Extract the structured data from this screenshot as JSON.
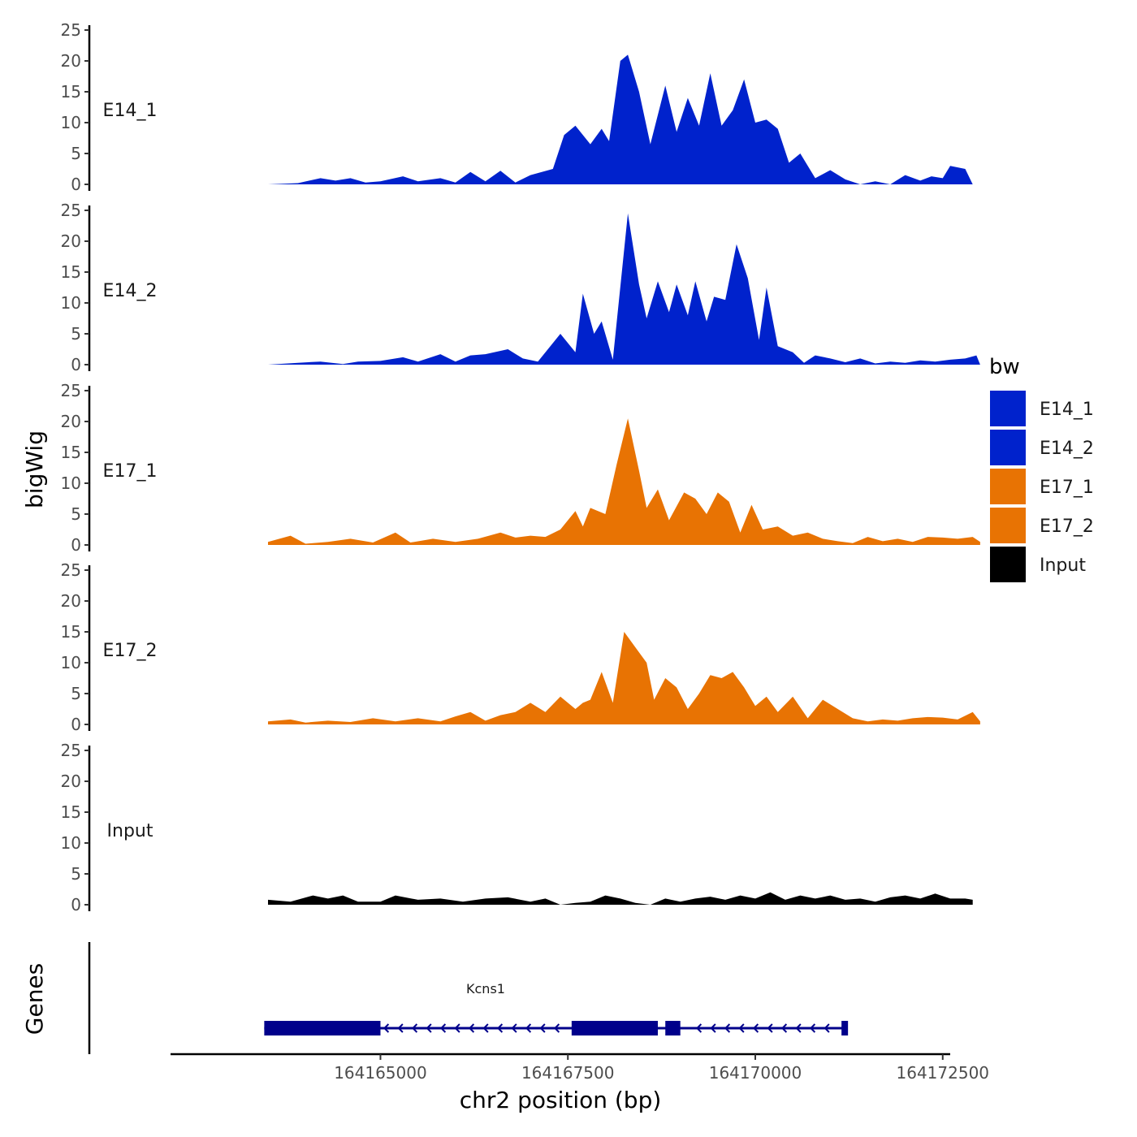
{
  "chart_data": {
    "type": "area",
    "title": "",
    "ylabel": "bigWig",
    "xlabel": "chr2 position (bp)",
    "genes_panel_label": "Genes",
    "ylim": [
      0,
      25
    ],
    "y_ticks": [
      0,
      5,
      10,
      15,
      20,
      25
    ],
    "x_ticks": [
      164165000,
      164167500,
      164170000,
      164172500
    ],
    "x_tick_labels": [
      "164165000",
      "164167500",
      "164170000",
      "164172500"
    ],
    "xlim": [
      164162200,
      164172600
    ],
    "legend": {
      "title": "bw",
      "position": "right",
      "entries": [
        {
          "name": "E14_1",
          "color": "#0022CC"
        },
        {
          "name": "E14_2",
          "color": "#0022CC"
        },
        {
          "name": "E17_1",
          "color": "#E87303"
        },
        {
          "name": "E17_2",
          "color": "#E87303"
        },
        {
          "name": "Input",
          "color": "#000000"
        }
      ]
    },
    "series": [
      {
        "name": "E14_1",
        "color": "#0022CC",
        "points": [
          [
            164163500,
            0
          ],
          [
            164163900,
            0.2
          ],
          [
            164164200,
            1
          ],
          [
            164164400,
            0.6
          ],
          [
            164164600,
            1
          ],
          [
            164164800,
            0.3
          ],
          [
            164165000,
            0.5
          ],
          [
            164165300,
            1.3
          ],
          [
            164165500,
            0.5
          ],
          [
            164165800,
            1
          ],
          [
            164166000,
            0.3
          ],
          [
            164166200,
            2
          ],
          [
            164166400,
            0.5
          ],
          [
            164166600,
            2.2
          ],
          [
            164166800,
            0.3
          ],
          [
            164167000,
            1.5
          ],
          [
            164167300,
            2.5
          ],
          [
            164167450,
            8
          ],
          [
            164167600,
            9.5
          ],
          [
            164167800,
            6.5
          ],
          [
            164167950,
            9
          ],
          [
            164168050,
            7
          ],
          [
            164168200,
            20
          ],
          [
            164168300,
            21
          ],
          [
            164168450,
            15
          ],
          [
            164168600,
            6.5
          ],
          [
            164168800,
            16
          ],
          [
            164168950,
            8.5
          ],
          [
            164169100,
            14
          ],
          [
            164169250,
            9.5
          ],
          [
            164169400,
            18
          ],
          [
            164169550,
            9.5
          ],
          [
            164169700,
            12
          ],
          [
            164169850,
            17
          ],
          [
            164170000,
            10
          ],
          [
            164170150,
            10.5
          ],
          [
            164170300,
            9
          ],
          [
            164170450,
            3.5
          ],
          [
            164170600,
            5
          ],
          [
            164170800,
            1
          ],
          [
            164171000,
            2.3
          ],
          [
            164171200,
            0.8
          ],
          [
            164171400,
            0
          ],
          [
            164171600,
            0.5
          ],
          [
            164171800,
            0
          ],
          [
            164172000,
            1.5
          ],
          [
            164172200,
            0.6
          ],
          [
            164172350,
            1.3
          ],
          [
            164172500,
            1
          ],
          [
            164172600,
            3
          ],
          [
            164172800,
            2.5
          ],
          [
            164172900,
            0
          ]
        ]
      },
      {
        "name": "E14_2",
        "color": "#0022CC",
        "points": [
          [
            164163500,
            0
          ],
          [
            164163900,
            0.3
          ],
          [
            164164200,
            0.5
          ],
          [
            164164500,
            0.1
          ],
          [
            164164700,
            0.5
          ],
          [
            164165000,
            0.6
          ],
          [
            164165300,
            1.2
          ],
          [
            164165500,
            0.5
          ],
          [
            164165800,
            1.7
          ],
          [
            164166000,
            0.5
          ],
          [
            164166200,
            1.5
          ],
          [
            164166400,
            1.7
          ],
          [
            164166700,
            2.5
          ],
          [
            164166900,
            1
          ],
          [
            164167100,
            0.5
          ],
          [
            164167400,
            5
          ],
          [
            164167600,
            2
          ],
          [
            164167700,
            11.5
          ],
          [
            164167850,
            5
          ],
          [
            164167950,
            7
          ],
          [
            164168100,
            0.8
          ],
          [
            164168300,
            24.5
          ],
          [
            164168450,
            13
          ],
          [
            164168550,
            7.5
          ],
          [
            164168700,
            13.5
          ],
          [
            164168850,
            8.5
          ],
          [
            164168950,
            13
          ],
          [
            164169100,
            8
          ],
          [
            164169200,
            13.5
          ],
          [
            164169350,
            7
          ],
          [
            164169450,
            11
          ],
          [
            164169600,
            10.5
          ],
          [
            164169750,
            19.5
          ],
          [
            164169900,
            14
          ],
          [
            164170050,
            4
          ],
          [
            164170150,
            12.5
          ],
          [
            164170300,
            3
          ],
          [
            164170500,
            2
          ],
          [
            164170650,
            0.3
          ],
          [
            164170800,
            1.5
          ],
          [
            164171000,
            1
          ],
          [
            164171200,
            0.4
          ],
          [
            164171400,
            1
          ],
          [
            164171600,
            0.2
          ],
          [
            164171800,
            0.5
          ],
          [
            164172000,
            0.3
          ],
          [
            164172200,
            0.7
          ],
          [
            164172400,
            0.5
          ],
          [
            164172600,
            0.8
          ],
          [
            164172800,
            1
          ],
          [
            164172950,
            1.5
          ],
          [
            164173000,
            0
          ]
        ]
      },
      {
        "name": "E17_1",
        "color": "#E87303",
        "points": [
          [
            164163500,
            0.5
          ],
          [
            164163800,
            1.5
          ],
          [
            164164000,
            0.2
          ],
          [
            164164300,
            0.5
          ],
          [
            164164600,
            1
          ],
          [
            164164900,
            0.4
          ],
          [
            164165200,
            2
          ],
          [
            164165400,
            0.4
          ],
          [
            164165700,
            1
          ],
          [
            164166000,
            0.5
          ],
          [
            164166300,
            1
          ],
          [
            164166600,
            2
          ],
          [
            164166800,
            1.2
          ],
          [
            164167000,
            1.5
          ],
          [
            164167200,
            1.3
          ],
          [
            164167400,
            2.5
          ],
          [
            164167600,
            5.5
          ],
          [
            164167700,
            3
          ],
          [
            164167800,
            6
          ],
          [
            164168000,
            5
          ],
          [
            164168150,
            13
          ],
          [
            164168300,
            20.5
          ],
          [
            164168450,
            12
          ],
          [
            164168550,
            6
          ],
          [
            164168700,
            9
          ],
          [
            164168850,
            4
          ],
          [
            164169050,
            8.5
          ],
          [
            164169200,
            7.5
          ],
          [
            164169350,
            5
          ],
          [
            164169500,
            8.5
          ],
          [
            164169650,
            7
          ],
          [
            164169800,
            2
          ],
          [
            164169950,
            6.5
          ],
          [
            164170100,
            2.5
          ],
          [
            164170300,
            3
          ],
          [
            164170500,
            1.5
          ],
          [
            164170700,
            2
          ],
          [
            164170900,
            1
          ],
          [
            164171100,
            0.6
          ],
          [
            164171300,
            0.3
          ],
          [
            164171500,
            1.3
          ],
          [
            164171700,
            0.6
          ],
          [
            164171900,
            1
          ],
          [
            164172100,
            0.5
          ],
          [
            164172300,
            1.3
          ],
          [
            164172500,
            1.2
          ],
          [
            164172700,
            1
          ],
          [
            164172900,
            1.3
          ],
          [
            164173000,
            0.5
          ]
        ]
      },
      {
        "name": "E17_2",
        "color": "#E87303",
        "points": [
          [
            164163500,
            0.5
          ],
          [
            164163800,
            0.8
          ],
          [
            164164000,
            0.3
          ],
          [
            164164300,
            0.6
          ],
          [
            164164600,
            0.4
          ],
          [
            164164900,
            1
          ],
          [
            164165200,
            0.5
          ],
          [
            164165500,
            1
          ],
          [
            164165800,
            0.5
          ],
          [
            164166000,
            1.3
          ],
          [
            164166200,
            2
          ],
          [
            164166400,
            0.6
          ],
          [
            164166600,
            1.5
          ],
          [
            164166800,
            2
          ],
          [
            164167000,
            3.5
          ],
          [
            164167200,
            2
          ],
          [
            164167400,
            4.5
          ],
          [
            164167600,
            2.5
          ],
          [
            164167700,
            3.5
          ],
          [
            164167800,
            4
          ],
          [
            164167950,
            8.5
          ],
          [
            164168100,
            3.5
          ],
          [
            164168250,
            15
          ],
          [
            164168400,
            12.5
          ],
          [
            164168550,
            10
          ],
          [
            164168650,
            4
          ],
          [
            164168800,
            7.5
          ],
          [
            164168950,
            6
          ],
          [
            164169100,
            2.5
          ],
          [
            164169250,
            5
          ],
          [
            164169400,
            8
          ],
          [
            164169550,
            7.5
          ],
          [
            164169700,
            8.5
          ],
          [
            164169850,
            6
          ],
          [
            164170000,
            3
          ],
          [
            164170150,
            4.5
          ],
          [
            164170300,
            2
          ],
          [
            164170500,
            4.5
          ],
          [
            164170700,
            1
          ],
          [
            164170900,
            4
          ],
          [
            164171100,
            2.5
          ],
          [
            164171300,
            1
          ],
          [
            164171500,
            0.5
          ],
          [
            164171700,
            0.8
          ],
          [
            164171900,
            0.6
          ],
          [
            164172100,
            1
          ],
          [
            164172300,
            1.2
          ],
          [
            164172500,
            1.1
          ],
          [
            164172700,
            0.8
          ],
          [
            164172900,
            2
          ],
          [
            164173000,
            0.5
          ]
        ]
      },
      {
        "name": "Input",
        "color": "#000000",
        "points": [
          [
            164163500,
            0.8
          ],
          [
            164163800,
            0.5
          ],
          [
            164164100,
            1.5
          ],
          [
            164164300,
            1
          ],
          [
            164164500,
            1.5
          ],
          [
            164164700,
            0.5
          ],
          [
            164165000,
            0.5
          ],
          [
            164165200,
            1.5
          ],
          [
            164165500,
            0.8
          ],
          [
            164165800,
            1
          ],
          [
            164166100,
            0.5
          ],
          [
            164166400,
            1
          ],
          [
            164166700,
            1.2
          ],
          [
            164167000,
            0.5
          ],
          [
            164167200,
            1
          ],
          [
            164167400,
            0
          ],
          [
            164167600,
            0.3
          ],
          [
            164167800,
            0.5
          ],
          [
            164168000,
            1.5
          ],
          [
            164168200,
            1
          ],
          [
            164168400,
            0.3
          ],
          [
            164168600,
            0
          ],
          [
            164168800,
            1
          ],
          [
            164169000,
            0.5
          ],
          [
            164169200,
            1
          ],
          [
            164169400,
            1.3
          ],
          [
            164169600,
            0.8
          ],
          [
            164169800,
            1.5
          ],
          [
            164170000,
            1
          ],
          [
            164170200,
            2
          ],
          [
            164170400,
            0.8
          ],
          [
            164170600,
            1.5
          ],
          [
            164170800,
            1
          ],
          [
            164171000,
            1.5
          ],
          [
            164171200,
            0.8
          ],
          [
            164171400,
            1
          ],
          [
            164171600,
            0.5
          ],
          [
            164171800,
            1.2
          ],
          [
            164172000,
            1.5
          ],
          [
            164172200,
            1
          ],
          [
            164172400,
            1.8
          ],
          [
            164172600,
            1
          ],
          [
            164172800,
            1
          ],
          [
            164172900,
            0.8
          ]
        ]
      }
    ],
    "genes": [
      {
        "name": "Kcns1",
        "strand": "-",
        "start": 164163450,
        "end": 164171200,
        "exons": [
          [
            164163450,
            164165000
          ],
          [
            164167550,
            164168700
          ],
          [
            164168800,
            164169000
          ],
          [
            164171150,
            164171200
          ]
        ]
      }
    ]
  }
}
